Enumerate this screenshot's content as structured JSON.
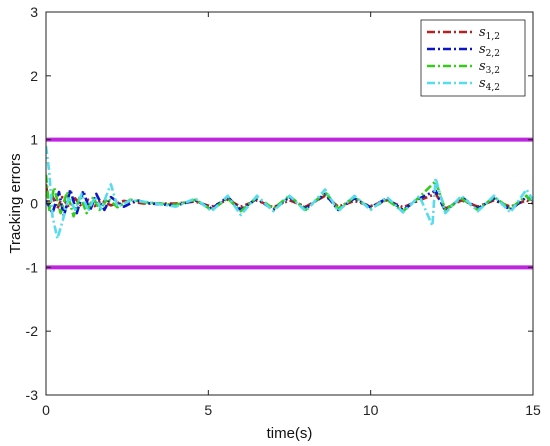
{
  "chart_data": {
    "type": "line",
    "xlabel": "time(s)",
    "ylabel": "Tracking errors",
    "xlim": [
      0,
      15
    ],
    "ylim": [
      -3,
      3
    ],
    "x_ticks": [
      0,
      5,
      10,
      15
    ],
    "y_ticks": [
      -3,
      -2,
      -1,
      0,
      1,
      2,
      3
    ],
    "grid": false,
    "legend_position": "top-right",
    "bounds": {
      "values": [
        1,
        -1
      ],
      "color": "#b200d6"
    },
    "series": [
      {
        "name": "s",
        "subscript": "1,2",
        "color": "#b22222",
        "dash": "8,3,2,3",
        "points": [
          [
            0,
            0.3
          ],
          [
            0.1,
            -0.05
          ],
          [
            0.2,
            0.12
          ],
          [
            0.35,
            -0.08
          ],
          [
            0.5,
            0.1
          ],
          [
            0.7,
            -0.06
          ],
          [
            0.9,
            0.08
          ],
          [
            1.1,
            -0.05
          ],
          [
            1.3,
            0.06
          ],
          [
            1.5,
            -0.04
          ],
          [
            1.7,
            0.05
          ],
          [
            2.0,
            -0.03
          ],
          [
            2.4,
            0.04
          ],
          [
            3.0,
            0.0
          ],
          [
            4.0,
            0.0
          ],
          [
            4.6,
            0.03
          ],
          [
            5.1,
            -0.05
          ],
          [
            5.6,
            0.06
          ],
          [
            6.0,
            -0.05
          ],
          [
            6.5,
            0.05
          ],
          [
            7.0,
            -0.06
          ],
          [
            7.5,
            0.05
          ],
          [
            8.0,
            -0.05
          ],
          [
            8.6,
            0.12
          ],
          [
            9.0,
            -0.05
          ],
          [
            9.5,
            0.04
          ],
          [
            10.0,
            -0.04
          ],
          [
            10.5,
            0.05
          ],
          [
            11.0,
            -0.06
          ],
          [
            11.5,
            0.05
          ],
          [
            12.0,
            0.15
          ],
          [
            12.3,
            -0.08
          ],
          [
            12.8,
            0.05
          ],
          [
            13.3,
            -0.05
          ],
          [
            13.8,
            0.05
          ],
          [
            14.3,
            -0.05
          ],
          [
            14.8,
            0.05
          ],
          [
            15.0,
            0.0
          ]
        ]
      },
      {
        "name": "s",
        "subscript": "2,2",
        "color": "#0b14c7",
        "dash": "8,3,2,3",
        "points": [
          [
            0,
            0.05
          ],
          [
            0.2,
            -0.15
          ],
          [
            0.4,
            0.18
          ],
          [
            0.55,
            -0.2
          ],
          [
            0.75,
            0.22
          ],
          [
            0.95,
            -0.15
          ],
          [
            1.15,
            0.2
          ],
          [
            1.35,
            -0.12
          ],
          [
            1.55,
            0.15
          ],
          [
            1.8,
            -0.1
          ],
          [
            2.0,
            0.1
          ],
          [
            2.4,
            -0.05
          ],
          [
            2.8,
            0.05
          ],
          [
            3.2,
            0.0
          ],
          [
            4.0,
            -0.03
          ],
          [
            4.6,
            0.05
          ],
          [
            5.1,
            -0.08
          ],
          [
            5.6,
            0.1
          ],
          [
            6.0,
            -0.1
          ],
          [
            6.5,
            0.08
          ],
          [
            7.0,
            -0.1
          ],
          [
            7.5,
            0.1
          ],
          [
            8.0,
            -0.08
          ],
          [
            8.6,
            0.15
          ],
          [
            9.0,
            -0.1
          ],
          [
            9.5,
            0.08
          ],
          [
            10.0,
            -0.06
          ],
          [
            10.5,
            0.08
          ],
          [
            11.0,
            -0.1
          ],
          [
            11.5,
            0.08
          ],
          [
            12.0,
            0.2
          ],
          [
            12.3,
            -0.12
          ],
          [
            12.8,
            0.1
          ],
          [
            13.3,
            -0.08
          ],
          [
            13.8,
            0.08
          ],
          [
            14.3,
            -0.1
          ],
          [
            14.8,
            0.1
          ],
          [
            15.0,
            0.05
          ]
        ]
      },
      {
        "name": "s",
        "subscript": "3,2",
        "color": "#33cc1a",
        "dash": "8,3,2,3",
        "points": [
          [
            0,
            0.45
          ],
          [
            0.1,
            -0.1
          ],
          [
            0.25,
            0.25
          ],
          [
            0.45,
            -0.15
          ],
          [
            0.65,
            0.18
          ],
          [
            0.85,
            -0.2
          ],
          [
            1.05,
            0.12
          ],
          [
            1.25,
            -0.15
          ],
          [
            1.45,
            0.1
          ],
          [
            1.65,
            -0.1
          ],
          [
            1.9,
            0.08
          ],
          [
            2.2,
            -0.06
          ],
          [
            2.6,
            0.06
          ],
          [
            3.0,
            0.02
          ],
          [
            4.0,
            -0.02
          ],
          [
            4.6,
            0.06
          ],
          [
            5.1,
            -0.1
          ],
          [
            5.6,
            0.08
          ],
          [
            6.0,
            -0.12
          ],
          [
            6.5,
            0.1
          ],
          [
            7.0,
            -0.08
          ],
          [
            7.5,
            0.12
          ],
          [
            8.0,
            -0.1
          ],
          [
            8.6,
            0.18
          ],
          [
            9.0,
            -0.08
          ],
          [
            9.5,
            0.1
          ],
          [
            10.0,
            -0.08
          ],
          [
            10.5,
            0.06
          ],
          [
            11.0,
            -0.12
          ],
          [
            11.5,
            0.1
          ],
          [
            12.0,
            0.35
          ],
          [
            12.3,
            -0.1
          ],
          [
            12.8,
            0.08
          ],
          [
            13.3,
            -0.1
          ],
          [
            13.8,
            0.1
          ],
          [
            14.3,
            -0.08
          ],
          [
            14.8,
            0.12
          ],
          [
            15.0,
            0.0
          ]
        ]
      },
      {
        "name": "s",
        "subscript": "4,2",
        "color": "#55dcee",
        "dash": "8,3,2,3",
        "points": [
          [
            0,
            0.9
          ],
          [
            0.1,
            0.5
          ],
          [
            0.2,
            -0.2
          ],
          [
            0.35,
            -0.55
          ],
          [
            0.5,
            -0.3
          ],
          [
            0.7,
            0.1
          ],
          [
            0.9,
            -0.1
          ],
          [
            1.1,
            0.15
          ],
          [
            1.3,
            -0.12
          ],
          [
            1.5,
            0.1
          ],
          [
            1.7,
            -0.08
          ],
          [
            2.0,
            0.3
          ],
          [
            2.2,
            -0.05
          ],
          [
            2.6,
            0.05
          ],
          [
            3.0,
            0.03
          ],
          [
            4.0,
            -0.05
          ],
          [
            4.6,
            0.08
          ],
          [
            5.1,
            -0.12
          ],
          [
            5.6,
            0.12
          ],
          [
            6.0,
            -0.18
          ],
          [
            6.5,
            0.12
          ],
          [
            7.0,
            -0.12
          ],
          [
            7.5,
            0.12
          ],
          [
            8.0,
            -0.12
          ],
          [
            8.6,
            0.22
          ],
          [
            9.0,
            -0.12
          ],
          [
            9.5,
            0.12
          ],
          [
            10.0,
            -0.1
          ],
          [
            10.5,
            0.1
          ],
          [
            11.0,
            -0.14
          ],
          [
            11.5,
            0.12
          ],
          [
            11.9,
            -0.35
          ],
          [
            12.0,
            0.4
          ],
          [
            12.3,
            -0.15
          ],
          [
            12.8,
            0.12
          ],
          [
            13.3,
            -0.12
          ],
          [
            13.8,
            0.12
          ],
          [
            14.3,
            -0.14
          ],
          [
            14.8,
            0.22
          ],
          [
            15.0,
            0.05
          ]
        ]
      }
    ]
  }
}
